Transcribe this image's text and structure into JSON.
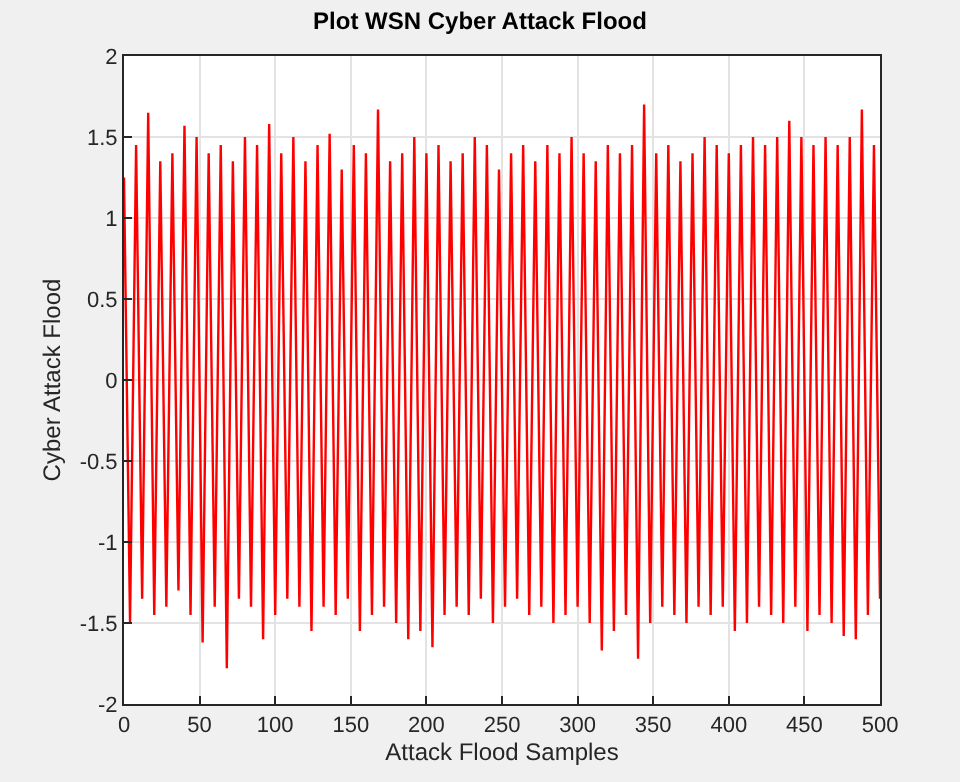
{
  "chart_data": {
    "type": "line",
    "title": "Plot WSN Cyber Attack Flood",
    "xlabel": "Attack Flood Samples",
    "ylabel": "Cyber Attack Flood",
    "x": [
      0,
      4,
      8,
      12,
      16,
      20,
      24,
      28,
      32,
      36,
      40,
      44,
      48,
      52,
      56,
      60,
      64,
      68,
      72,
      76,
      80,
      84,
      88,
      92,
      96,
      100,
      104,
      108,
      112,
      116,
      120,
      124,
      128,
      132,
      136,
      140,
      144,
      148,
      152,
      156,
      160,
      164,
      168,
      172,
      176,
      180,
      184,
      188,
      192,
      196,
      200,
      204,
      208,
      212,
      216,
      220,
      224,
      228,
      232,
      236,
      240,
      244,
      248,
      252,
      256,
      260,
      264,
      268,
      272,
      276,
      280,
      284,
      288,
      292,
      296,
      300,
      304,
      308,
      312,
      316,
      320,
      324,
      328,
      332,
      336,
      340,
      344,
      348,
      352,
      356,
      360,
      364,
      368,
      372,
      376,
      380,
      384,
      388,
      392,
      396,
      400,
      404,
      408,
      412,
      416,
      420,
      424,
      428,
      432,
      436,
      440,
      444,
      448,
      452,
      456,
      460,
      464,
      468,
      472,
      476,
      480,
      484,
      488,
      492,
      496,
      500
    ],
    "series": [
      {
        "color": "#ff0000",
        "values": [
          1.25,
          -1.5,
          1.45,
          -1.35,
          1.65,
          -1.45,
          1.35,
          -1.4,
          1.4,
          -1.3,
          1.57,
          -1.45,
          1.5,
          -1.62,
          1.4,
          -1.4,
          1.45,
          -1.78,
          1.35,
          -1.35,
          1.5,
          -1.4,
          1.45,
          -1.6,
          1.58,
          -1.45,
          1.4,
          -1.35,
          1.5,
          -1.4,
          1.35,
          -1.55,
          1.45,
          -1.4,
          1.52,
          -1.45,
          1.3,
          -1.35,
          1.45,
          -1.55,
          1.4,
          -1.45,
          1.67,
          -1.4,
          1.35,
          -1.5,
          1.4,
          -1.6,
          1.5,
          -1.55,
          1.4,
          -1.65,
          1.45,
          -1.45,
          1.35,
          -1.4,
          1.4,
          -1.45,
          1.5,
          -1.35,
          1.45,
          -1.5,
          1.3,
          -1.4,
          1.4,
          -1.35,
          1.45,
          -1.45,
          1.35,
          -1.4,
          1.45,
          -1.5,
          1.4,
          -1.45,
          1.5,
          -1.4,
          1.4,
          -1.5,
          1.35,
          -1.67,
          1.45,
          -1.55,
          1.4,
          -1.45,
          1.45,
          -1.72,
          1.7,
          -1.5,
          1.4,
          -1.4,
          1.45,
          -1.45,
          1.35,
          -1.5,
          1.4,
          -1.4,
          1.5,
          -1.45,
          1.45,
          -1.4,
          1.4,
          -1.55,
          1.45,
          -1.5,
          1.5,
          -1.4,
          1.45,
          -1.45,
          1.5,
          -1.5,
          1.6,
          -1.4,
          1.5,
          -1.55,
          1.45,
          -1.45,
          1.5,
          -1.5,
          1.45,
          -1.58,
          1.5,
          -1.6,
          1.67,
          -1.45,
          1.45,
          -1.35
        ]
      }
    ],
    "xlim": [
      0,
      500
    ],
    "xticks": [
      0,
      50,
      100,
      150,
      200,
      250,
      300,
      350,
      400,
      450,
      500
    ],
    "ylim": [
      -2,
      2
    ],
    "yticks": [
      -2,
      -1.5,
      -1,
      -0.5,
      0,
      0.5,
      1,
      1.5,
      2
    ],
    "grid": true,
    "marker": "none",
    "line_style": "solid"
  }
}
